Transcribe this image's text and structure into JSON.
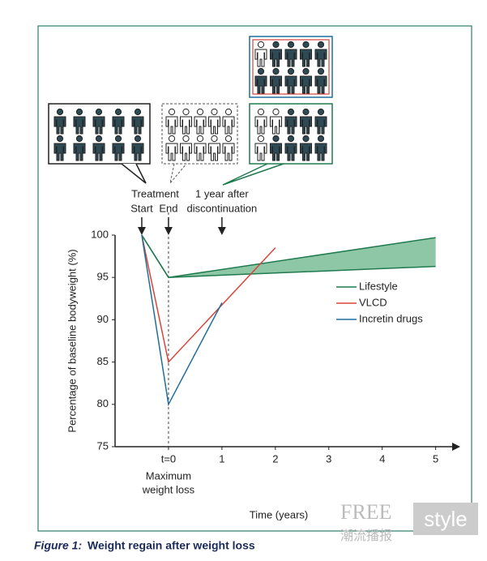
{
  "chart_data": {
    "type": "line",
    "xlabel": "Time (years)",
    "ylabel": "Percentage of baseline bodyweight (%)",
    "xlim": [
      -1,
      5.4
    ],
    "ylim": [
      75,
      100
    ],
    "xticks": [
      {
        "value": 0,
        "label": "t=0"
      },
      1,
      2,
      3,
      4,
      5
    ],
    "yticks": [
      75,
      80,
      85,
      90,
      95,
      100
    ],
    "series": [
      {
        "name": "Lifestyle",
        "color": "#1f7a4f",
        "x": [
          -0.5,
          0,
          5
        ],
        "values": [
          100,
          95,
          99.7
        ],
        "lower": [
          100,
          95,
          96.3
        ],
        "band_color": "#8ec7a6"
      },
      {
        "name": "VLCD",
        "color": "#d8443a",
        "x": [
          -0.5,
          0,
          2
        ],
        "values": [
          100,
          85,
          98.5
        ]
      },
      {
        "name": "Incretin drugs",
        "color": "#1f6e9e",
        "x": [
          -0.5,
          0,
          1
        ],
        "values": [
          100,
          80,
          92
        ]
      }
    ],
    "annotations": [
      {
        "text": "Treatment",
        "x": -0.25,
        "row": 0
      },
      {
        "text": "Start",
        "x": -0.5,
        "row": 1
      },
      {
        "text": "End",
        "x": 0,
        "row": 1
      },
      {
        "text": "1 year after",
        "x": 1,
        "row": 0
      },
      {
        "text": "discontinuation",
        "x": 1,
        "row": 1
      }
    ],
    "x_note": [
      "Maximum",
      "weight loss"
    ]
  },
  "caption": {
    "label": "Figure 1:",
    "text": "Weight regain after weight loss"
  },
  "watermark": [
    "FREE",
    "style",
    "潮流播报"
  ]
}
